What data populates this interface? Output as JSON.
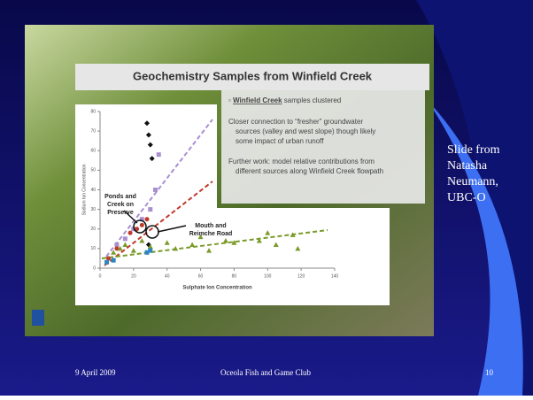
{
  "slide": {
    "side_note": [
      "Slide from",
      "Natasha",
      "Neumann,",
      "UBC-O"
    ],
    "footer": {
      "date": "9 April 2009",
      "center": "Oceola Fish and Game Club",
      "page": "10"
    },
    "image": {
      "title": "Geochemistry Samples from Winfield Creek",
      "bullets": [
        {
          "underlined": "Winfield Creek",
          "rest": " samples clustered"
        },
        {
          "lines": [
            "Closer connection to “fresher” groundwater",
            "sources (valley and west slope) though likely",
            "some impact of urban runoff"
          ]
        },
        {
          "lines": [
            "Further work: model relative contributions from",
            "different sources along Winfield Creek flowpath"
          ]
        }
      ],
      "chart": {
        "type": "scatter",
        "x_label": "Sulphate Ion Concentration",
        "y_label": "Sodium Ion Concentration",
        "annotations": [
          [
            "Ponds and",
            "Creek on",
            "Preserve"
          ],
          [
            "Mouth and",
            "Reimche Road"
          ]
        ],
        "xlim": [
          0,
          140
        ],
        "xticks": [
          0,
          20,
          40,
          60,
          80,
          100,
          120,
          140
        ],
        "ylim": [
          0,
          80
        ],
        "yticks": [
          0,
          10,
          20,
          30,
          40,
          50,
          60,
          70,
          80
        ],
        "series": [
          {
            "color": "#111111",
            "marker": "diamond",
            "x": [
              28,
              29,
              30,
              31,
              29
            ],
            "values": [
              74,
              68,
              63,
              56,
              12
            ]
          },
          {
            "color": "#a98fd0",
            "marker": "square",
            "x": [
              10,
              15,
              20,
              25,
              30,
              33,
              35
            ],
            "values": [
              12,
              15,
              20,
              25,
              30,
              40,
              58
            ]
          },
          {
            "color": "#c0392b",
            "marker": "circle",
            "x": [
              5,
              10,
              18,
              22,
              25,
              28
            ],
            "values": [
              5,
              10,
              18,
              20,
              22,
              25
            ]
          },
          {
            "color": "#7a9a2a",
            "marker": "triangle",
            "x": [
              8,
              12,
              15,
              20,
              25,
              30,
              40,
              45,
              55,
              60,
              65,
              75,
              80,
              95,
              100,
              105,
              115,
              118
            ],
            "values": [
              8,
              10,
              12,
              9,
              14,
              11,
              13,
              10,
              12,
              16,
              9,
              14,
              13,
              14,
              18,
              12,
              17,
              10
            ]
          },
          {
            "color": "#2e86c1",
            "marker": "square",
            "x": [
              4,
              8,
              28,
              30
            ],
            "values": [
              3,
              4,
              8,
              9
            ]
          }
        ]
      }
    }
  }
}
